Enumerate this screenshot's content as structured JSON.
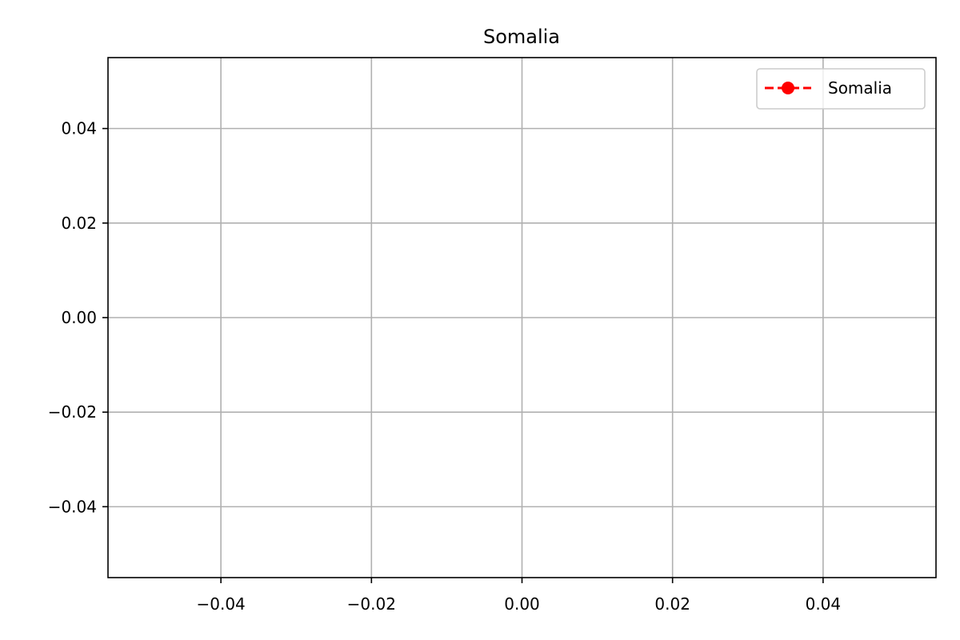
{
  "chart_data": {
    "type": "line",
    "title": "Somalia",
    "xlabel": "",
    "ylabel": "",
    "xlim": [
      -0.055,
      0.055
    ],
    "ylim": [
      -0.055,
      0.055
    ],
    "x_ticks": [
      -0.04,
      -0.02,
      0.0,
      0.02,
      0.04
    ],
    "x_tick_labels": [
      "−0.04",
      "−0.02",
      "0.00",
      "0.02",
      "0.04"
    ],
    "y_ticks": [
      -0.04,
      -0.02,
      0.0,
      0.02,
      0.04
    ],
    "y_tick_labels": [
      "−0.04",
      "−0.02",
      "0.00",
      "0.02",
      "0.04"
    ],
    "grid": true,
    "legend_position": "top-right",
    "series": [
      {
        "name": "Somalia",
        "x": [],
        "y": [],
        "color": "#ff0000",
        "line_style": "dashed",
        "marker": "circle"
      }
    ]
  }
}
